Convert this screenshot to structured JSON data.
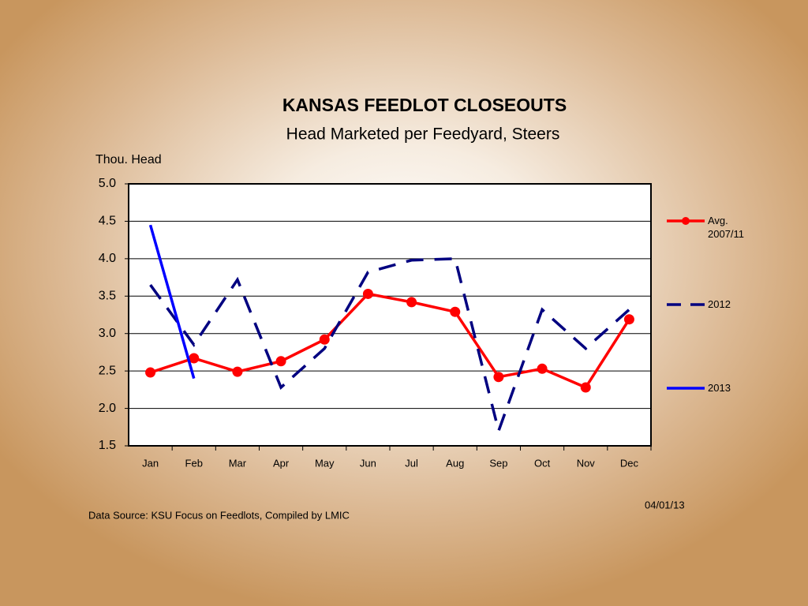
{
  "chart_data": {
    "type": "line",
    "title": "KANSAS  FEEDLOT  CLOSEOUTS",
    "subtitle": "Head Marketed per Feedyard, Steers",
    "y_label": "Thou. Head",
    "source": "Data Source: KSU Focus on Feedlots, Compiled by LMIC",
    "date": "04/01/13",
    "categories": [
      "Jan",
      "Feb",
      "Mar",
      "Apr",
      "May",
      "Jun",
      "Jul",
      "Aug",
      "Sep",
      "Oct",
      "Nov",
      "Dec"
    ],
    "series": [
      {
        "name": "Avg. 2007/11",
        "color": "#ff0000",
        "line_style": "solid",
        "marker": "circle",
        "values": [
          2.48,
          2.67,
          2.49,
          2.63,
          2.92,
          3.53,
          3.42,
          3.29,
          2.42,
          2.53,
          2.28,
          3.19
        ]
      },
      {
        "name": "2012",
        "color": "#000080",
        "line_style": "dashed",
        "marker": "none",
        "values": [
          3.65,
          2.85,
          3.72,
          2.28,
          2.8,
          3.82,
          3.98,
          4.0,
          1.7,
          3.32,
          2.8,
          3.32
        ]
      },
      {
        "name": "2013",
        "color": "#0000ff",
        "line_style": "solid",
        "marker": "none",
        "values": [
          4.45,
          2.4,
          null,
          null,
          null,
          null,
          null,
          null,
          null,
          null,
          null,
          null
        ]
      }
    ],
    "ylim": [
      1.5,
      5.0
    ],
    "yticks": [
      1.5,
      {
        "value": 2.0,
        "label": "2.0"
      },
      2.5,
      {
        "value": 3.0,
        "label": "3.0"
      },
      3.5,
      {
        "value": 4.0,
        "label": "4.0"
      },
      4.5,
      {
        "value": 5.0,
        "label": "5.0"
      }
    ],
    "grid": true,
    "legend": "right"
  }
}
